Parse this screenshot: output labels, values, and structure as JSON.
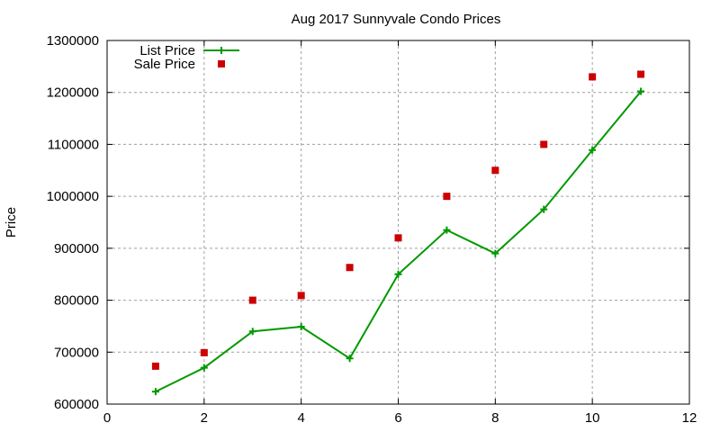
{
  "chart_data": {
    "type": "line",
    "title": "Aug 2017 Sunnyvale Condo Prices",
    "xlabel": "",
    "ylabel": "Price",
    "xlim": [
      0,
      12
    ],
    "ylim": [
      600000,
      1300000
    ],
    "xticks": [
      0,
      2,
      4,
      6,
      8,
      10,
      12
    ],
    "yticks": [
      600000,
      700000,
      800000,
      900000,
      1000000,
      1100000,
      1200000,
      1300000
    ],
    "grid": true,
    "legend_position": "top-left",
    "x": [
      1,
      2,
      3,
      4,
      5,
      6,
      7,
      8,
      9,
      10,
      11
    ],
    "series": [
      {
        "name": "List Price",
        "style": "linespoints",
        "marker": "plus",
        "color": "#009900",
        "values": [
          624000,
          670000,
          740000,
          749000,
          688000,
          850000,
          935000,
          890000,
          975000,
          1089000,
          1202000
        ]
      },
      {
        "name": "Sale Price",
        "style": "points",
        "marker": "square",
        "color": "#cc0000",
        "values": [
          673000,
          699000,
          800000,
          809000,
          863000,
          920000,
          1000000,
          1050000,
          1100000,
          1230000,
          1235000
        ]
      }
    ]
  }
}
